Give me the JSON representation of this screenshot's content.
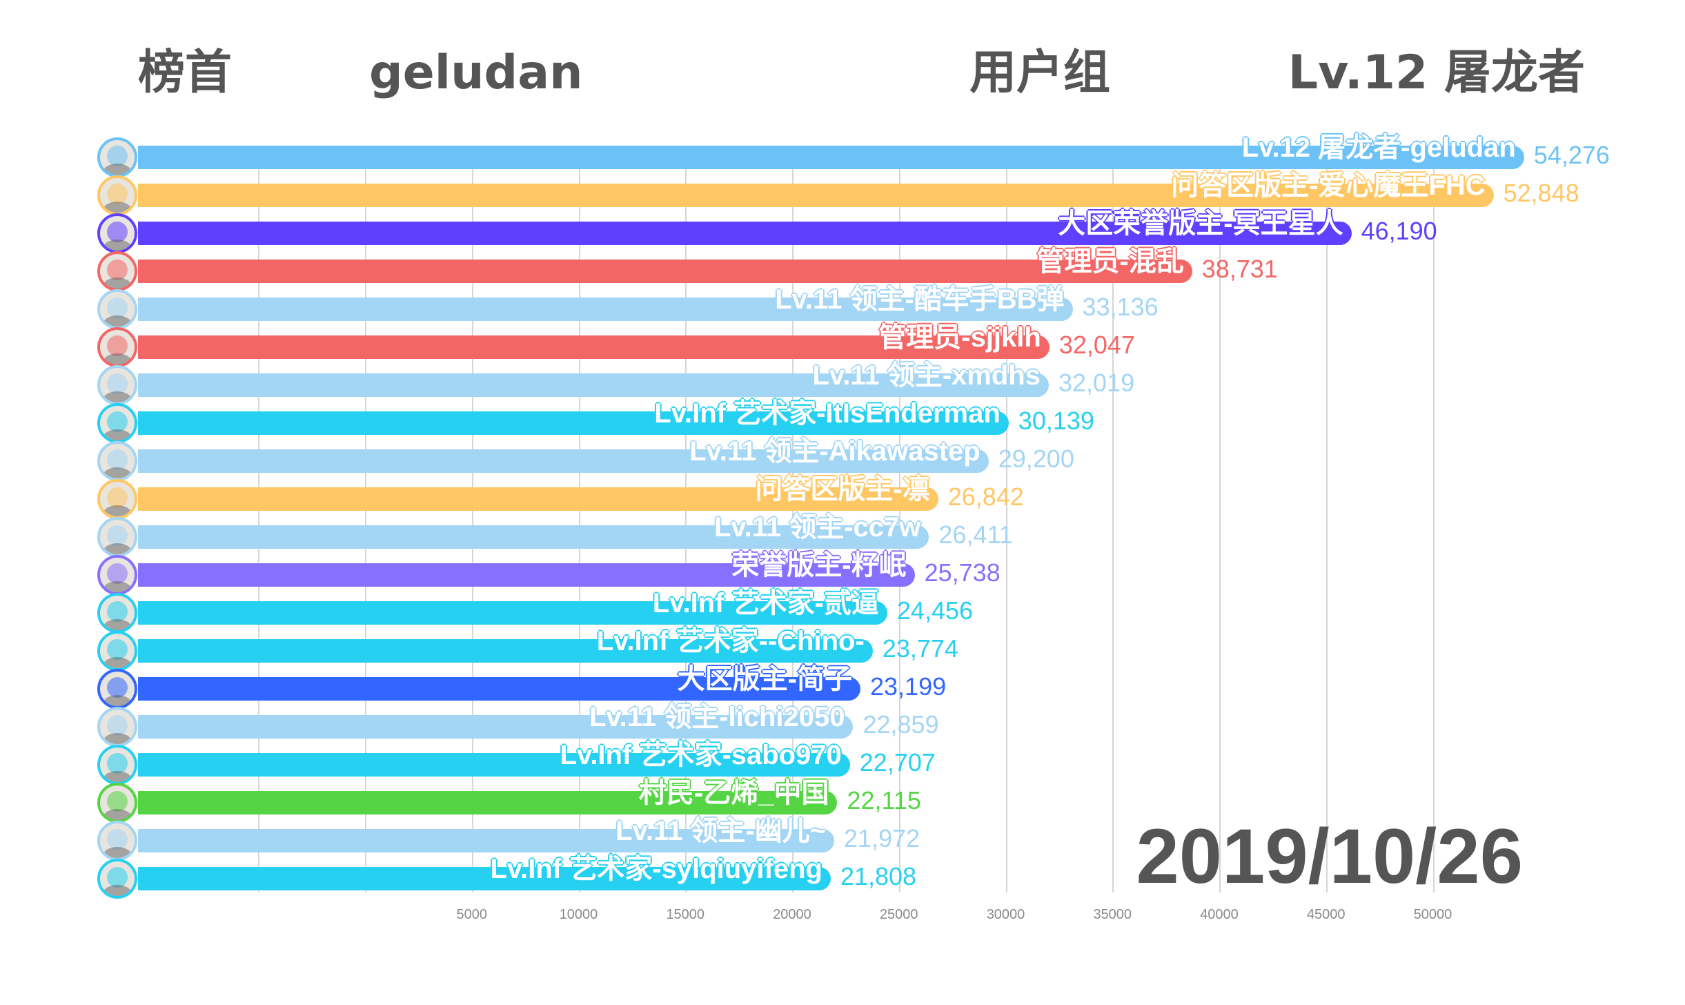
{
  "header": {
    "top_label": "榜首",
    "top_user": "geludan",
    "group_label": "用户组",
    "group_value": "Lv.12 屠龙者"
  },
  "chart_data": {
    "type": "bar",
    "orientation": "horizontal",
    "date": "2019/10/26",
    "xticks": [
      "5000",
      "10000",
      "15000",
      "20000",
      "25000",
      "30000",
      "35000",
      "40000",
      "45000",
      "50000"
    ],
    "gridlines": [
      -5000,
      0,
      5000,
      10000,
      15000,
      20000,
      25000,
      30000,
      35000,
      40000,
      45000,
      50000
    ],
    "xlim": [
      -10600,
      56000
    ],
    "categories": [
      "Lv.12 屠龙者-geludan",
      "问答区版主-爱心魔王FHC",
      "大区荣誉版主-冥王星人",
      "管理员-混乱",
      "Lv.11 领主-酷车手BB弹",
      "管理员-sjjklh",
      "Lv.11 领主-xmdhs",
      "Lv.Inf 艺术家-ItIsEnderman",
      "Lv.11 领主-Aikawastep",
      "问答区版主-凛",
      "Lv.11 领主-cc7w",
      "荣誉版主-籽岷",
      "Lv.Inf 艺术家-贰逼",
      "Lv.Inf 艺术家--Chino-",
      "大区版主-简子",
      "Lv.11 领主-lichi2050",
      "Lv.Inf 艺术家-sabo970",
      "村民-乙烯_中国",
      "Lv.11 领主-幽儿~",
      "Lv.Inf 艺术家-sylqiuyifeng"
    ],
    "values": [
      54276,
      52848,
      46190,
      38731,
      33136,
      32047,
      32019,
      30139,
      29200,
      26842,
      26411,
      25738,
      24456,
      23774,
      23199,
      22859,
      22707,
      22115,
      21972,
      21808
    ],
    "value_labels": [
      "54,276",
      "52,848",
      "46,190",
      "38,731",
      "33,136",
      "32,047",
      "32,019",
      "30,139",
      "29,200",
      "26,842",
      "26,411",
      "25,738",
      "24,456",
      "23,774",
      "23,199",
      "22,859",
      "22,707",
      "22,115",
      "21,972",
      "21,808"
    ],
    "colors": [
      "#6CC2F7",
      "#FFC764",
      "#6040FF",
      "#F26766",
      "#A3D5F5",
      "#F26766",
      "#A3D5F5",
      "#26D0F0",
      "#A3D5F5",
      "#FFC764",
      "#A3D5F5",
      "#8870FF",
      "#26D0F0",
      "#26D0F0",
      "#3366FF",
      "#A3D5F5",
      "#26D0F0",
      "#55D544",
      "#A3D5F5",
      "#26D0F0"
    ]
  }
}
